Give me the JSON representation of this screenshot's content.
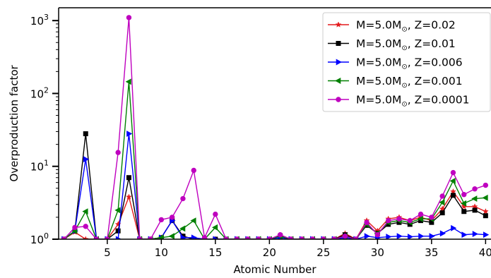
{
  "chart_data": {
    "type": "line",
    "xlabel": "Atomic Number",
    "ylabel": "Overproduction factor",
    "xscale": "linear",
    "yscale": "log",
    "xlim": [
      0.5,
      40.5
    ],
    "ylim": [
      1,
      1500
    ],
    "grid": false,
    "legend_position": "top-right",
    "x_ticks": [
      5,
      10,
      15,
      20,
      25,
      30,
      35,
      40
    ],
    "y_ticks": [
      {
        "value": 1,
        "base": "10",
        "exp": "0"
      },
      {
        "value": 10,
        "base": "10",
        "exp": "1"
      },
      {
        "value": 100,
        "base": "10",
        "exp": "2"
      },
      {
        "value": 1000,
        "base": "10",
        "exp": "3"
      }
    ],
    "series": [
      {
        "name_parts": {
          "main": "M=5.0M",
          "sub": "⊙",
          "tail": ", Z=0.02"
        },
        "color": "#e41a1c",
        "marker": "star",
        "x": [
          1,
          2,
          3,
          4,
          5,
          6,
          7,
          8,
          9,
          10,
          11,
          12,
          13,
          14,
          15,
          16,
          17,
          18,
          19,
          20,
          21,
          22,
          23,
          24,
          25,
          26,
          27,
          28,
          29,
          30,
          31,
          32,
          33,
          34,
          35,
          36,
          37,
          38,
          39,
          40
        ],
        "values": [
          1,
          1.25,
          1,
          1,
          1,
          1.6,
          3.8,
          1,
          1,
          1.05,
          1.8,
          1.1,
          1,
          1,
          1,
          1,
          1,
          1,
          1,
          1,
          1.12,
          1,
          1,
          1,
          1,
          1,
          1.2,
          1,
          1.8,
          1.3,
          1.9,
          2,
          1.8,
          2,
          1.8,
          2.6,
          4.5,
          2.8,
          2.8,
          2.4
        ]
      },
      {
        "name_parts": {
          "main": "M=5.0M",
          "sub": "⊙",
          "tail": ", Z=0.01"
        },
        "color": "#000000",
        "marker": "square",
        "x": [
          1,
          2,
          3,
          4,
          5,
          6,
          7,
          8,
          9,
          10,
          11,
          12,
          13,
          14,
          15,
          16,
          17,
          18,
          19,
          20,
          21,
          22,
          23,
          24,
          25,
          26,
          27,
          28,
          29,
          30,
          31,
          32,
          33,
          34,
          35,
          36,
          37,
          38,
          39,
          40
        ],
        "values": [
          1,
          1.3,
          28,
          1,
          1,
          1.3,
          7,
          1,
          1,
          1.05,
          1.8,
          1.1,
          1,
          1,
          1,
          1,
          1,
          1,
          1,
          1,
          1.1,
          1,
          1,
          1,
          1,
          1,
          1.15,
          1,
          1.55,
          1.2,
          1.6,
          1.7,
          1.6,
          1.8,
          1.7,
          2.3,
          4,
          2.4,
          2.5,
          2.1
        ]
      },
      {
        "name_parts": {
          "main": "M=5.0M",
          "sub": "⊙",
          "tail": ", Z=0.006"
        },
        "color": "#0000ff",
        "marker": "triangle-right",
        "x": [
          1,
          2,
          3,
          4,
          5,
          6,
          7,
          8,
          9,
          10,
          11,
          12,
          13,
          14,
          15,
          16,
          17,
          18,
          19,
          20,
          21,
          22,
          23,
          24,
          25,
          26,
          27,
          28,
          29,
          30,
          31,
          32,
          33,
          34,
          35,
          36,
          37,
          38,
          39,
          40
        ],
        "values": [
          1,
          1.3,
          12.5,
          1,
          1,
          1,
          28,
          1,
          1,
          1.05,
          1.8,
          1.05,
          1.05,
          1,
          1,
          1,
          1,
          1,
          1,
          1,
          1.05,
          1,
          1,
          1,
          1,
          1,
          1.05,
          1,
          1.1,
          1.05,
          1.08,
          1.1,
          1.08,
          1.1,
          1.1,
          1.2,
          1.42,
          1.15,
          1.18,
          1.15
        ]
      },
      {
        "name_parts": {
          "main": "M=5.0M",
          "sub": "⊙",
          "tail": ", Z=0.001"
        },
        "color": "#008000",
        "marker": "triangle-left",
        "x": [
          1,
          2,
          3,
          4,
          5,
          6,
          7,
          8,
          9,
          10,
          11,
          12,
          13,
          14,
          15,
          16,
          17,
          18,
          19,
          20,
          21,
          22,
          23,
          24,
          25,
          26,
          27,
          28,
          29,
          30,
          31,
          32,
          33,
          34,
          35,
          36,
          37,
          38,
          39,
          40
        ],
        "values": [
          1,
          1.3,
          2.4,
          1,
          1,
          2.5,
          145,
          1,
          1,
          1.05,
          1.1,
          1.4,
          1.8,
          1,
          1.45,
          1,
          1,
          1,
          1,
          1,
          1.1,
          1,
          1,
          1,
          1,
          1,
          1.1,
          1,
          1.6,
          1.2,
          1.7,
          1.8,
          1.7,
          1.9,
          1.9,
          3.2,
          6.3,
          3.1,
          3.6,
          3.7
        ]
      },
      {
        "name_parts": {
          "main": "M=5.0M",
          "sub": "⊙",
          "tail": ", Z=0.0001"
        },
        "color": "#bf00bf",
        "marker": "circle",
        "x": [
          1,
          2,
          3,
          4,
          5,
          6,
          7,
          8,
          9,
          10,
          11,
          12,
          13,
          14,
          15,
          16,
          17,
          18,
          19,
          20,
          21,
          22,
          23,
          24,
          25,
          26,
          27,
          28,
          29,
          30,
          31,
          32,
          33,
          34,
          35,
          36,
          37,
          38,
          39,
          40
        ],
        "values": [
          1,
          1.45,
          1.5,
          1,
          1,
          15.5,
          1100,
          1,
          1,
          1.85,
          2,
          3.6,
          8.8,
          1.05,
          2.2,
          1,
          1,
          1,
          1,
          1,
          1.15,
          1,
          1,
          1,
          1,
          1,
          1.1,
          1,
          1.7,
          1.15,
          1.8,
          1.9,
          1.8,
          2.2,
          2,
          3.9,
          8.2,
          4.1,
          4.9,
          5.5
        ]
      }
    ]
  }
}
